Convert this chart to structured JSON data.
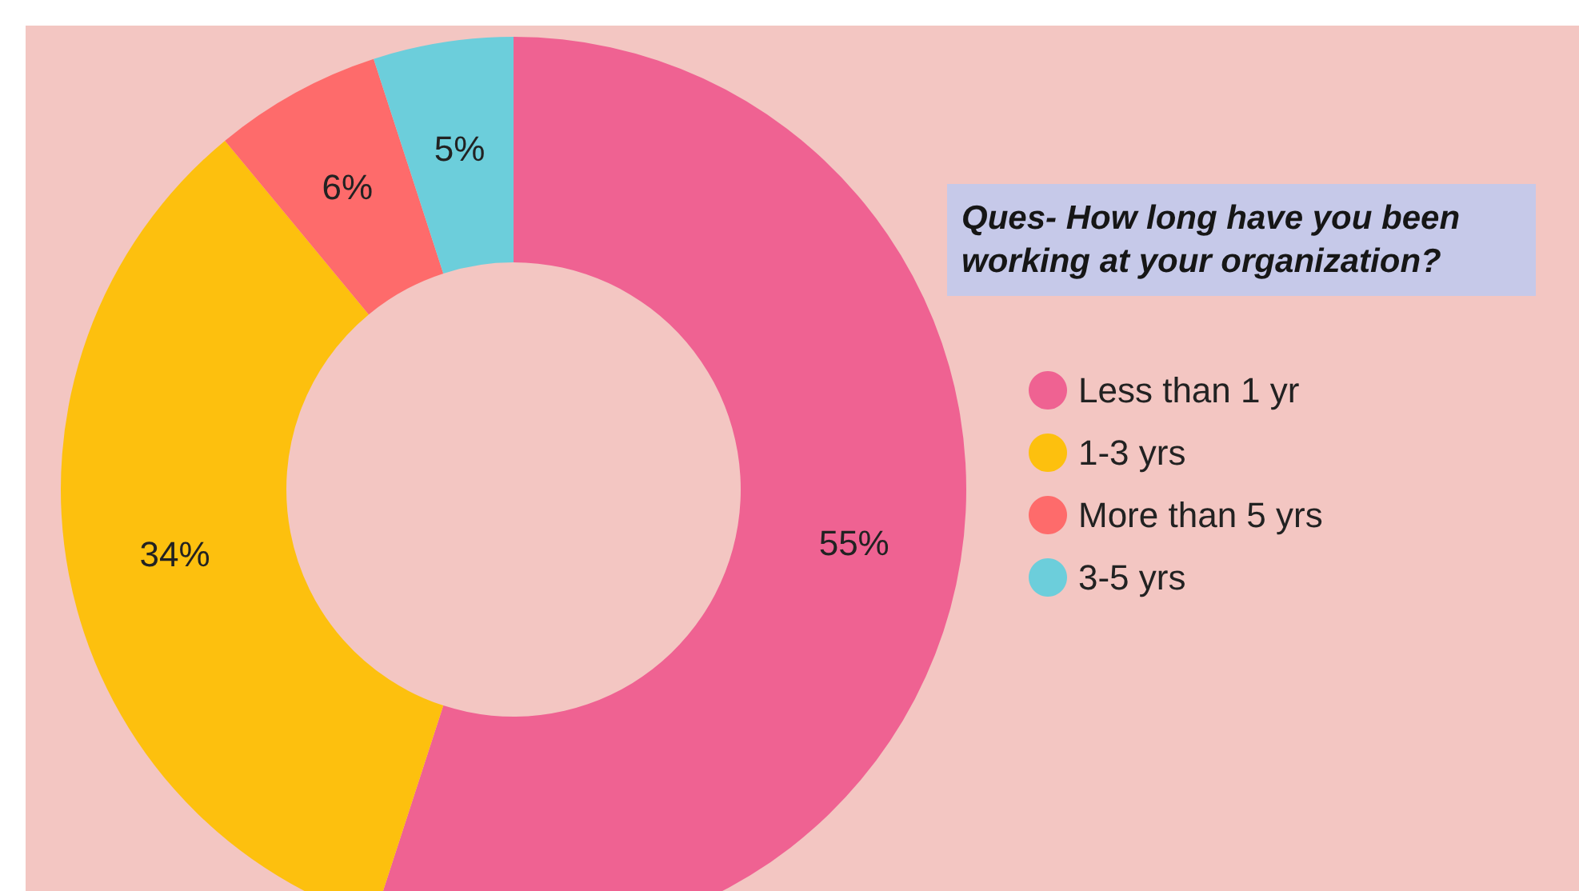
{
  "chart_data": {
    "type": "donut",
    "title": "Ques- How long have you been working at your organization?",
    "categories": [
      "Less than 1 yr",
      "1-3 yrs",
      "More than 5 yrs",
      "3-5 yrs"
    ],
    "values": [
      55,
      34,
      6,
      5
    ],
    "colors": [
      "#ef6292",
      "#fdc00e",
      "#fe6b6b",
      "#6ccedb"
    ],
    "value_labels": [
      "55%",
      "34%",
      "6%",
      "5%"
    ],
    "legend": "right"
  }
}
